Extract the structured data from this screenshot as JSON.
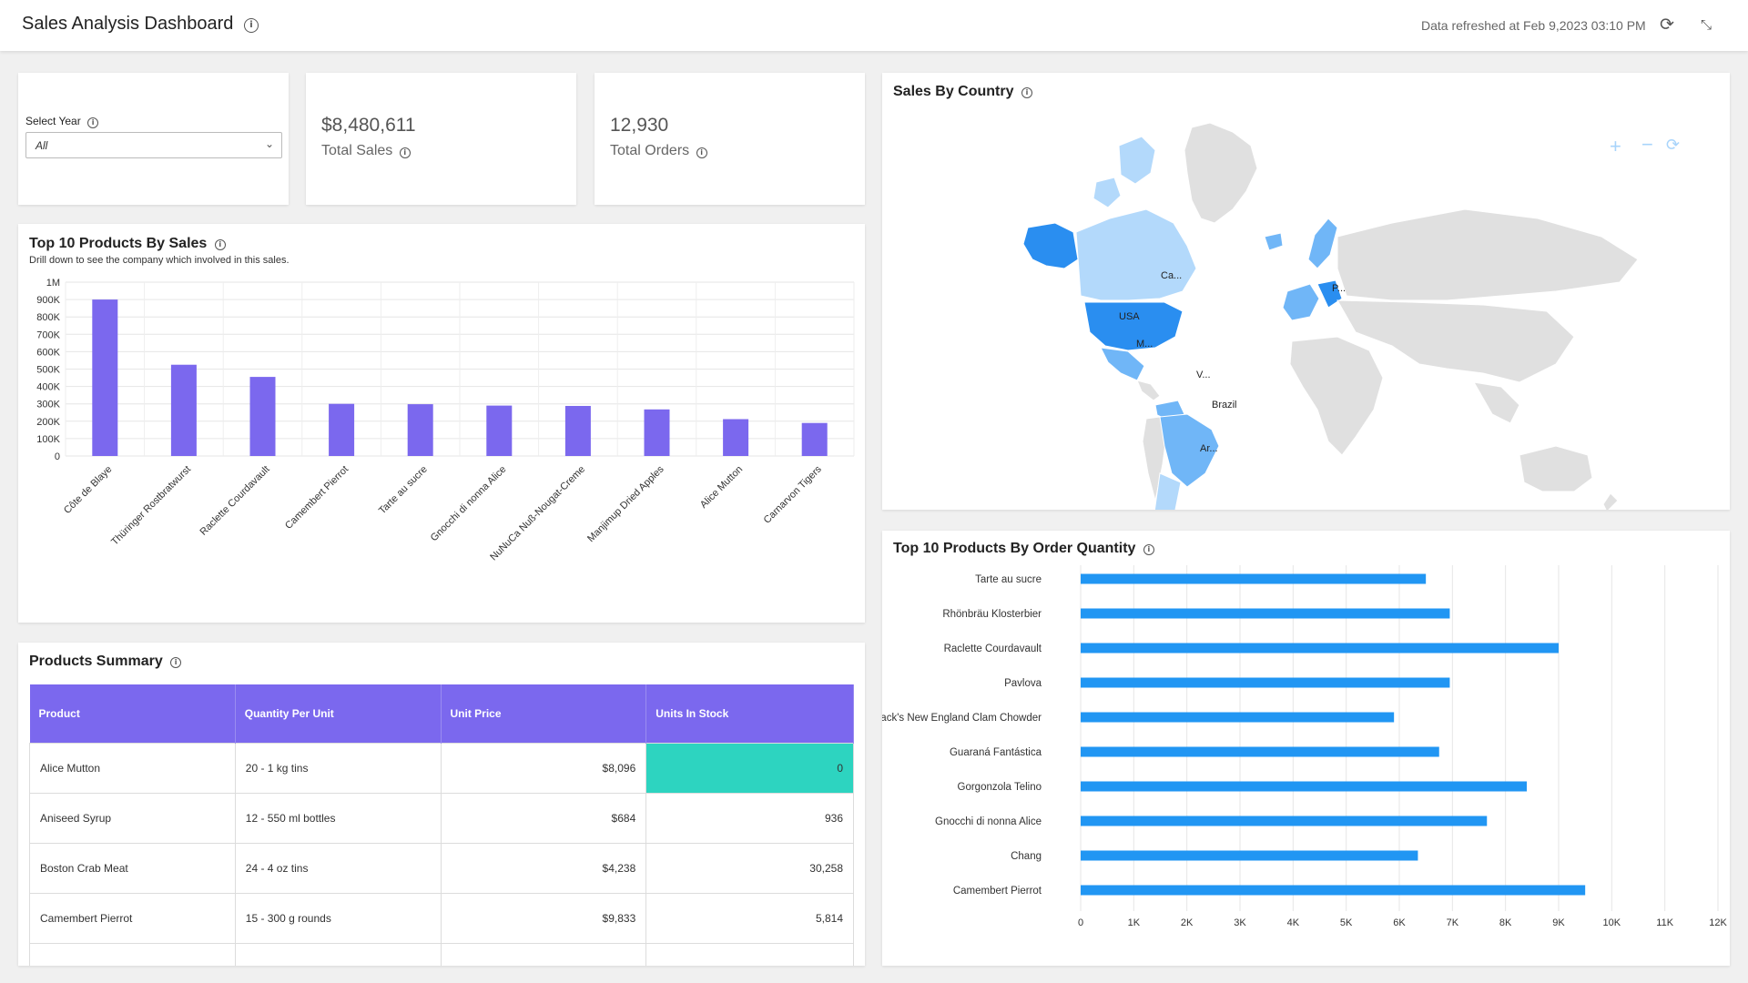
{
  "header": {
    "title": "Sales Analysis Dashboard",
    "refresh_text": "Data refreshed at Feb 9,2023 03:10 PM"
  },
  "filter": {
    "label": "Select Year",
    "selected": "All"
  },
  "kpis": {
    "total_sales_value": "$8,480,611",
    "total_sales_label": "Total Sales",
    "total_orders_value": "12,930",
    "total_orders_label": "Total Orders"
  },
  "top_sales": {
    "title": "Top 10 Products By Sales",
    "subtitle": "Drill down to see the company which involved in this sales."
  },
  "map": {
    "title": "Sales By Country",
    "labels": [
      "Ca...",
      "USA",
      "M...",
      "V...",
      "Brazil",
      "Ar...",
      "P..."
    ]
  },
  "top_qty": {
    "title": "Top 10 Products By Order Quantity"
  },
  "summary": {
    "title": "Products Summary",
    "columns": [
      "Product",
      "Quantity Per Unit",
      "Unit Price",
      "Units In Stock"
    ],
    "rows": [
      [
        "Alice Mutton",
        "20 - 1 kg tins",
        "$8,096",
        "0"
      ],
      [
        "Aniseed Syrup",
        "12 - 550 ml bottles",
        "$684",
        "936"
      ],
      [
        "Boston Crab Meat",
        "24 - 4 oz tins",
        "$4,238",
        "30,258"
      ],
      [
        "Camembert Pierrot",
        "15 - 300 g rounds",
        "$9,833",
        "5,814"
      ]
    ]
  },
  "colors": {
    "bar_purple": "#7b68ee",
    "bar_blue": "#2196f3",
    "highlight_teal": "#2dd4c0",
    "map_dark": "#2a8ef0",
    "map_mid": "#70b6f7",
    "map_light": "#b3d9fb",
    "map_gray": "#e0e0e0"
  },
  "chart_data": [
    {
      "type": "bar",
      "title": "Top 10 Products By Sales",
      "categories": [
        "Côte de Blaye",
        "Thüringer Rostbratwurst",
        "Raclette Courdavault",
        "Camembert Pierrot",
        "Tarte au sucre",
        "Gnocchi di nonna Alice",
        "NuNuCa Nuß-Nougat-Creme",
        "Manjimup Dried Apples",
        "Alice Mutton",
        "Carnarvon Tigers"
      ],
      "values": [
        900000,
        525000,
        455000,
        300000,
        298000,
        290000,
        288000,
        268000,
        212000,
        190000
      ],
      "ylim": [
        0,
        1000000
      ],
      "yticks": [
        "0",
        "100K",
        "200K",
        "300K",
        "400K",
        "500K",
        "600K",
        "700K",
        "800K",
        "900K",
        "1M"
      ],
      "grid": true
    },
    {
      "type": "bar",
      "orientation": "horizontal",
      "title": "Top 10 Products By Order Quantity",
      "categories": [
        "Tarte au sucre",
        "Rhönbräu Klosterbier",
        "Raclette Courdavault",
        "Pavlova",
        "Jack's New England Clam Chowder",
        "Guaraná Fantástica",
        "Gorgonzola Telino",
        "Gnocchi di nonna Alice",
        "Chang",
        "Camembert Pierrot"
      ],
      "values": [
        6500,
        6950,
        9000,
        6950,
        5900,
        6750,
        8400,
        7650,
        6350,
        9500
      ],
      "xlim": [
        0,
        12000
      ],
      "xticks": [
        "0",
        "1K",
        "2K",
        "3K",
        "4K",
        "5K",
        "6K",
        "7K",
        "8K",
        "9K",
        "10K",
        "11K",
        "12K"
      ],
      "grid": true
    }
  ]
}
